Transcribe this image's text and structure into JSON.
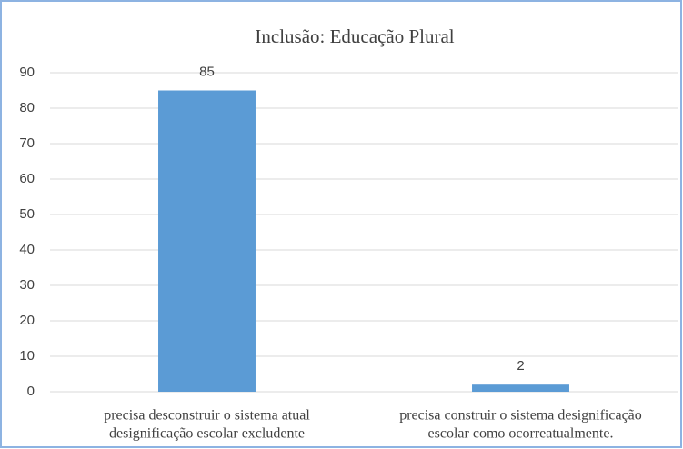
{
  "chart_data": {
    "type": "bar",
    "title": "Inclusão: Educação Plural",
    "categories": [
      [
        "precisa desconstruir o sistema atual",
        "designificação escolar excludente"
      ],
      [
        "precisa construir o sistema designificação",
        "escolar como ocorreatualmente."
      ]
    ],
    "values": [
      85,
      2
    ],
    "color": "#5b9bd5",
    "ylim": [
      0,
      90
    ],
    "yticks": [
      0,
      10,
      20,
      30,
      40,
      50,
      60,
      70,
      80,
      90
    ],
    "grid": true
  }
}
